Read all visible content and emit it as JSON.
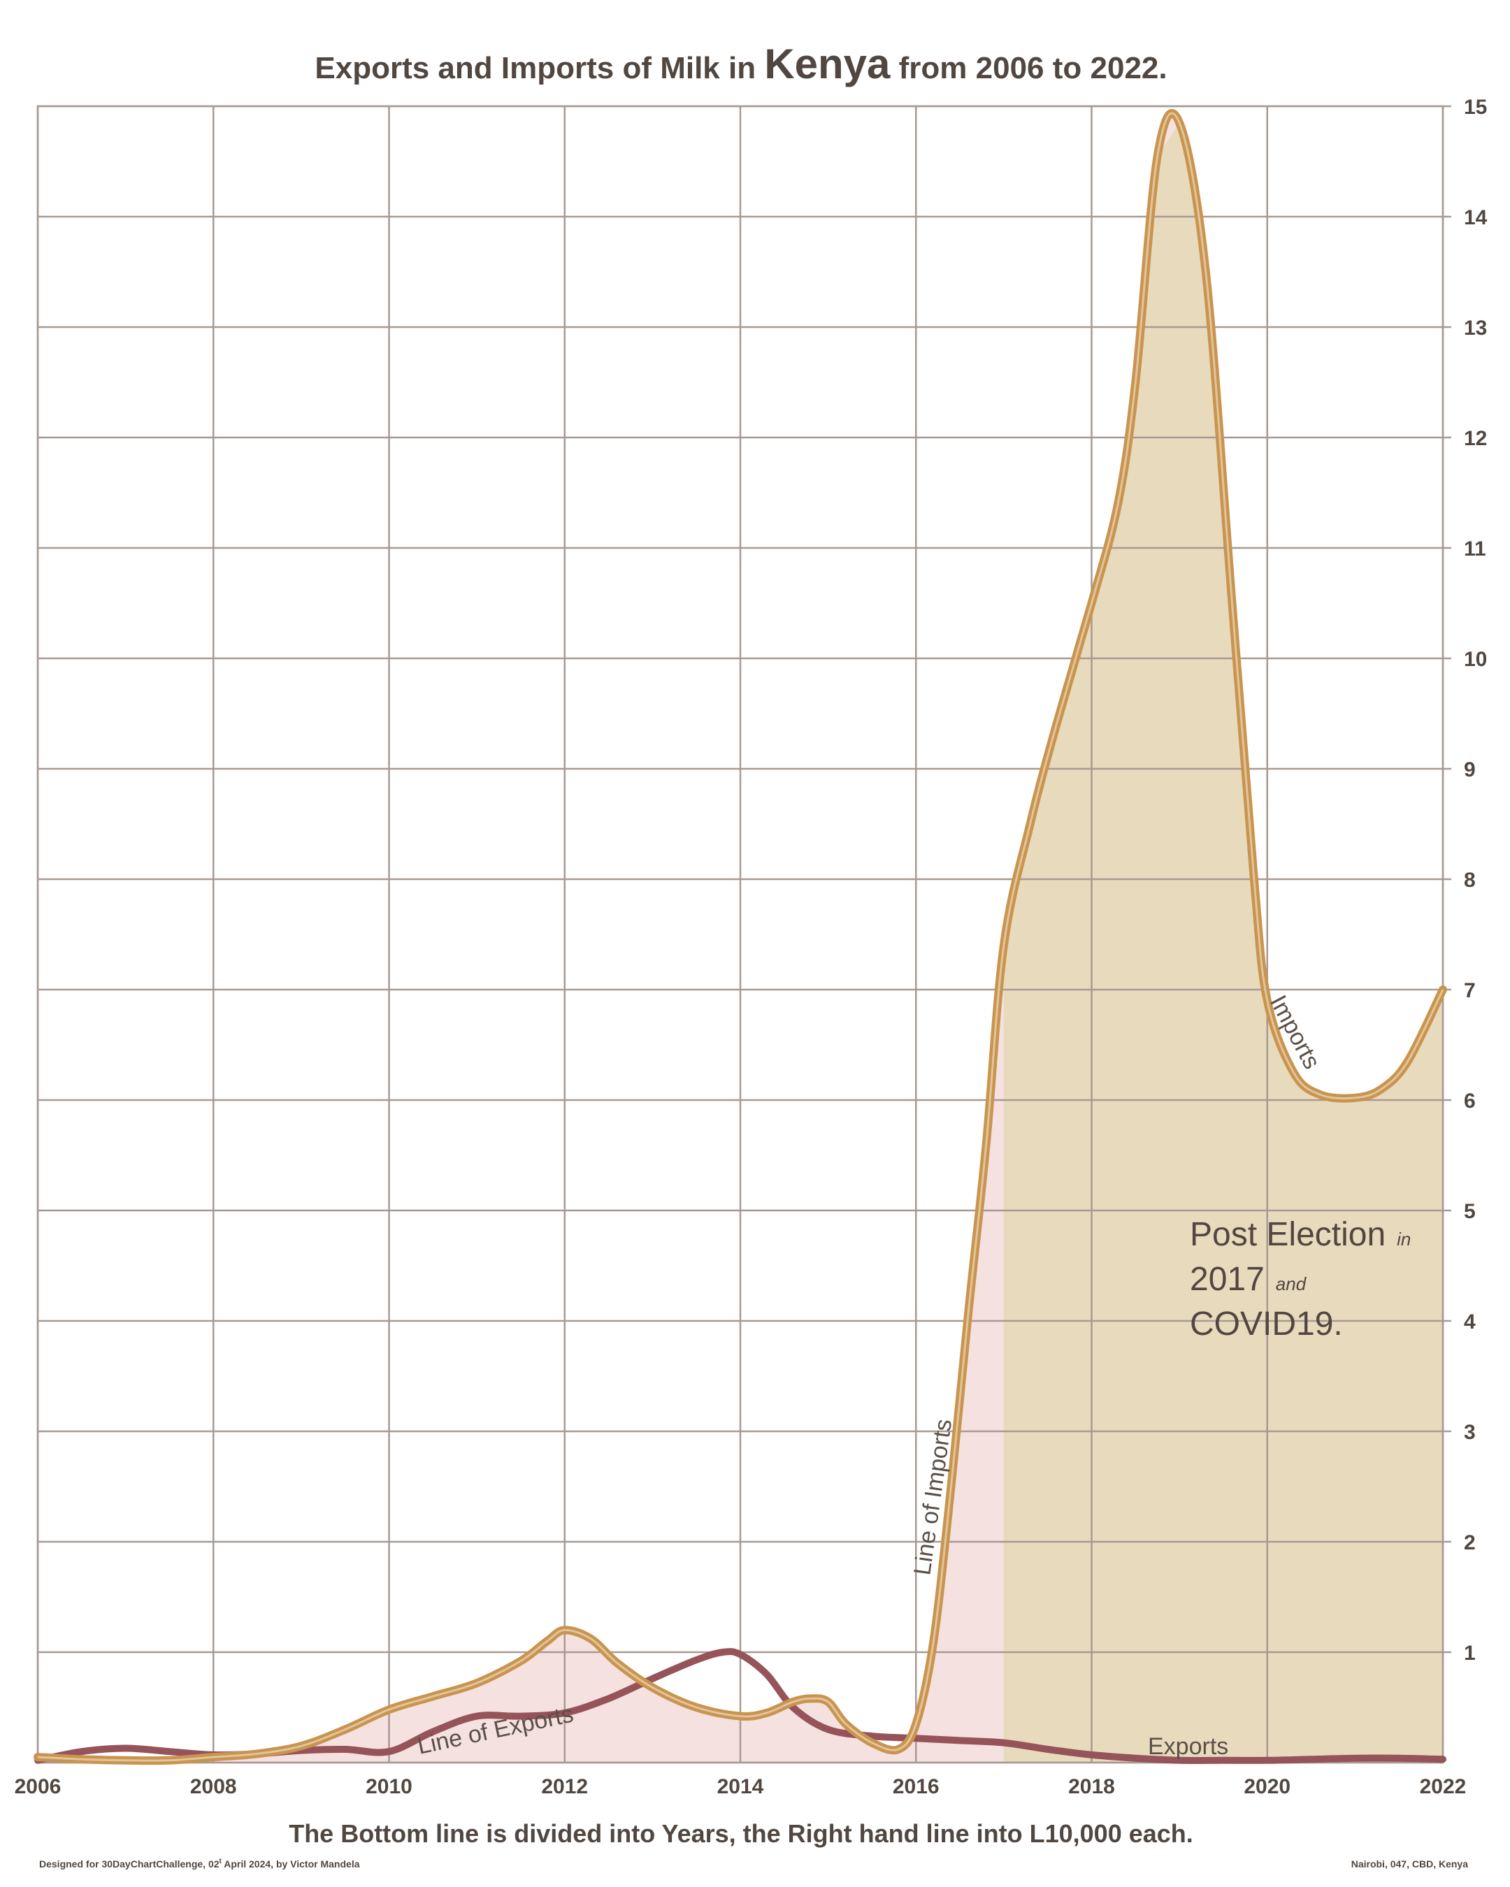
{
  "chart_data": {
    "type": "line",
    "title_parts": [
      "Exports and Imports of Milk in ",
      "Kenya",
      " from 2006 to 2022."
    ],
    "xlabel": "The Bottom line is divided into Years, the Right hand line into L10,000 each.",
    "ylabel": "",
    "xlim": [
      2006,
      2022
    ],
    "ylim": [
      0,
      15
    ],
    "x_ticks": [
      2006,
      2008,
      2010,
      2012,
      2014,
      2016,
      2018,
      2020,
      2022
    ],
    "y_ticks": [
      1,
      2,
      3,
      4,
      5,
      6,
      7,
      8,
      9,
      10,
      11,
      12,
      13,
      14,
      15
    ],
    "grid": true,
    "y_axis_side": "right",
    "colors": {
      "imports": "#c9944f",
      "exports": "#96535a",
      "imports_fill": "#e8dbbd",
      "exports_fill": "#f2dcdb",
      "grid": "#a89a93",
      "text": "#514740"
    },
    "series": [
      {
        "name": "Imports",
        "x": [
          2006,
          2006.5,
          2007,
          2007.5,
          2008,
          2008.5,
          2009,
          2009.5,
          2010,
          2010.5,
          2011,
          2011.5,
          2011.8,
          2012,
          2012.3,
          2012.6,
          2013,
          2013.5,
          2014,
          2014.3,
          2014.6,
          2014.8,
          2015,
          2015.2,
          2015.5,
          2015.8,
          2016,
          2016.2,
          2016.4,
          2016.6,
          2016.8,
          2017,
          2017.3,
          2017.6,
          2018,
          2018.3,
          2018.5,
          2018.75,
          2019,
          2019.3,
          2019.6,
          2019.85,
          2020,
          2020.3,
          2020.6,
          2021,
          2021.3,
          2021.6,
          2022
        ],
        "values": [
          0.05,
          0.03,
          0.02,
          0.02,
          0.05,
          0.08,
          0.15,
          0.3,
          0.48,
          0.6,
          0.72,
          0.92,
          1.1,
          1.2,
          1.12,
          0.9,
          0.68,
          0.5,
          0.42,
          0.45,
          0.55,
          0.58,
          0.55,
          0.35,
          0.18,
          0.12,
          0.35,
          1.1,
          2.5,
          4.1,
          5.6,
          7.4,
          8.5,
          9.4,
          10.5,
          11.4,
          12.5,
          14.55,
          14.85,
          13.5,
          10.5,
          8.0,
          6.9,
          6.25,
          6.05,
          6.02,
          6.1,
          6.35,
          7.0
        ]
      },
      {
        "name": "Exports",
        "x": [
          2006,
          2006.5,
          2007,
          2007.5,
          2008,
          2008.5,
          2009,
          2009.5,
          2010,
          2010.5,
          2011,
          2011.5,
          2012,
          2012.5,
          2013,
          2013.5,
          2013.8,
          2014,
          2014.3,
          2014.6,
          2015,
          2015.5,
          2016,
          2016.5,
          2017,
          2017.5,
          2018,
          2018.5,
          2019,
          2019.5,
          2020,
          2020.5,
          2021,
          2021.5,
          2022
        ],
        "values": [
          0.02,
          0.1,
          0.13,
          0.1,
          0.07,
          0.08,
          0.11,
          0.12,
          0.1,
          0.28,
          0.42,
          0.42,
          0.45,
          0.58,
          0.76,
          0.93,
          1.0,
          0.98,
          0.8,
          0.5,
          0.3,
          0.24,
          0.22,
          0.2,
          0.18,
          0.12,
          0.07,
          0.04,
          0.02,
          0.02,
          0.02,
          0.03,
          0.04,
          0.04,
          0.03
        ]
      }
    ],
    "annotations": {
      "line_of_exports": "Line of Exports",
      "line_of_imports": "Line of Imports",
      "imports": "Imports",
      "exports": "Exports",
      "note_line1_big": "Post Election",
      "note_line1_small": "in",
      "note_line2_big": "2017",
      "note_line2_small": "and",
      "note_line3_big": "COVID19."
    }
  },
  "footer": {
    "left_a": "Designed for 30DayChartChallenge, 02",
    "left_sup": "t",
    "left_b": " April 2024, by Victor Mandela",
    "right": "Nairobi, 047, CBD, Kenya"
  }
}
